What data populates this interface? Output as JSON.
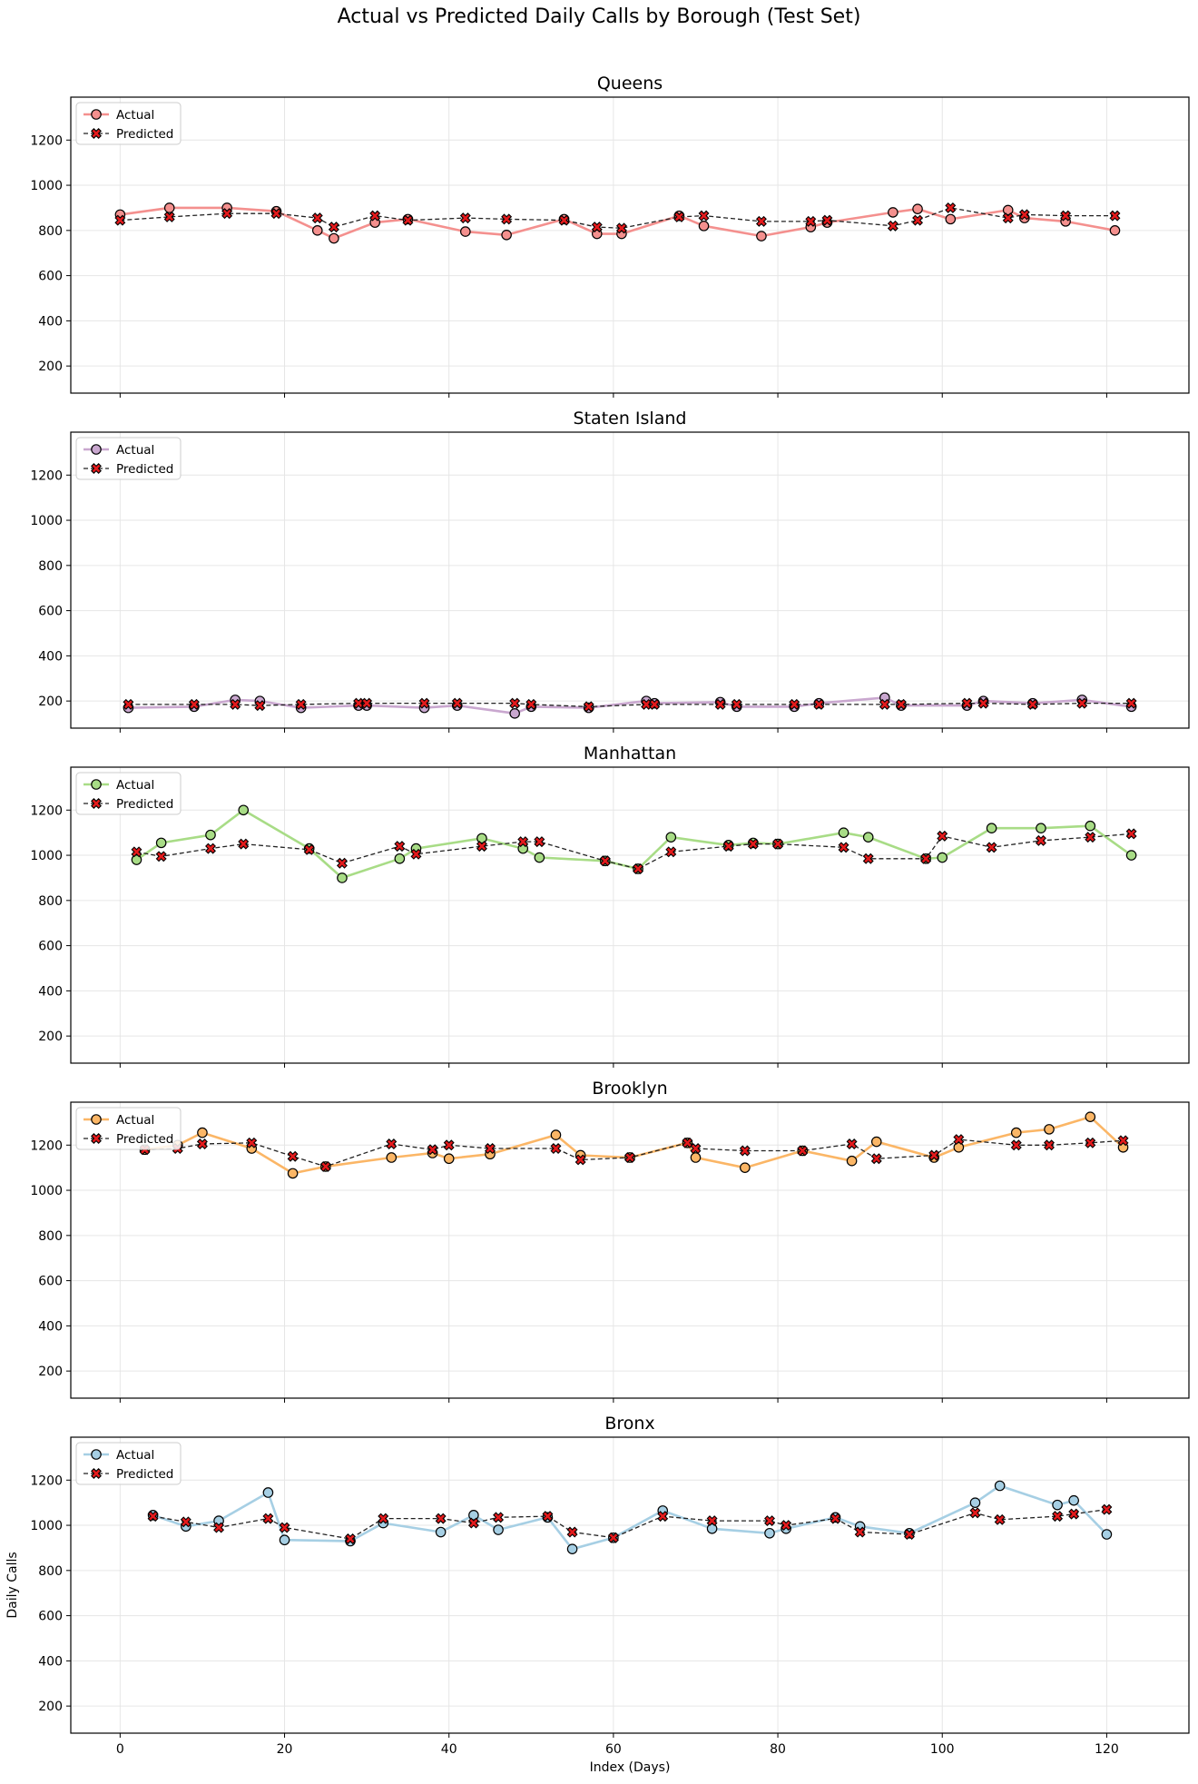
{
  "figure_title": "Actual vs Predicted Daily Calls by Borough (Test Set)",
  "colors": {
    "predicted_marker": "#e41a1c",
    "predicted_line": "#222222",
    "grid": "#e6e6e6"
  },
  "chart_data": [
    {
      "type": "line",
      "title": "Queens",
      "xlabel": "",
      "ylabel": "",
      "xlim": [
        -6,
        130
      ],
      "ylim": [
        80,
        1390
      ],
      "x_ticks": [
        0,
        20,
        40,
        60,
        80,
        100,
        120
      ],
      "y_ticks": [
        200,
        400,
        600,
        800,
        1000,
        1200
      ],
      "show_x_tick_labels": false,
      "grid": true,
      "legend": "top-left",
      "color": "#f4908e",
      "series": [
        {
          "name": "Actual",
          "x": [
            0,
            6,
            13,
            19,
            24,
            26,
            31,
            35,
            42,
            47,
            54,
            58,
            61,
            68,
            71,
            78,
            84,
            86,
            94,
            97,
            101,
            108,
            110,
            115,
            121
          ],
          "values": [
            870,
            900,
            900,
            885,
            800,
            765,
            835,
            850,
            795,
            780,
            850,
            785,
            785,
            865,
            820,
            775,
            815,
            835,
            880,
            895,
            850,
            890,
            855,
            840,
            800
          ]
        },
        {
          "name": "Predicted",
          "x": [
            0,
            6,
            13,
            19,
            24,
            26,
            31,
            35,
            42,
            47,
            54,
            58,
            61,
            68,
            71,
            78,
            84,
            86,
            94,
            97,
            101,
            108,
            110,
            115,
            121
          ],
          "values": [
            845,
            860,
            875,
            875,
            855,
            815,
            865,
            845,
            855,
            850,
            845,
            815,
            810,
            860,
            865,
            840,
            840,
            845,
            820,
            845,
            900,
            855,
            870,
            865,
            865
          ]
        }
      ]
    },
    {
      "type": "line",
      "title": "Staten Island",
      "xlabel": "",
      "ylabel": "",
      "xlim": [
        -6,
        130
      ],
      "ylim": [
        80,
        1390
      ],
      "x_ticks": [
        0,
        20,
        40,
        60,
        80,
        100,
        120
      ],
      "y_ticks": [
        200,
        400,
        600,
        800,
        1000,
        1200
      ],
      "show_x_tick_labels": false,
      "grid": true,
      "legend": "top-left",
      "color": "#c9a7cf",
      "series": [
        {
          "name": "Actual",
          "x": [
            1,
            9,
            14,
            17,
            22,
            29,
            30,
            37,
            41,
            48,
            50,
            57,
            64,
            65,
            73,
            75,
            82,
            85,
            93,
            95,
            103,
            105,
            111,
            117,
            123
          ],
          "values": [
            170,
            175,
            205,
            200,
            170,
            180,
            180,
            170,
            180,
            145,
            175,
            170,
            200,
            190,
            195,
            175,
            175,
            190,
            215,
            180,
            180,
            200,
            190,
            205,
            175
          ]
        },
        {
          "name": "Predicted",
          "x": [
            1,
            9,
            14,
            17,
            22,
            29,
            30,
            37,
            41,
            48,
            50,
            57,
            64,
            65,
            73,
            75,
            82,
            85,
            93,
            95,
            103,
            105,
            111,
            117,
            123
          ],
          "values": [
            185,
            185,
            185,
            180,
            185,
            190,
            190,
            190,
            190,
            190,
            185,
            175,
            185,
            185,
            185,
            185,
            185,
            185,
            185,
            185,
            190,
            190,
            185,
            190,
            190
          ]
        }
      ]
    },
    {
      "type": "line",
      "title": "Manhattan",
      "xlabel": "",
      "ylabel": "",
      "xlim": [
        -6,
        130
      ],
      "ylim": [
        80,
        1390
      ],
      "x_ticks": [
        0,
        20,
        40,
        60,
        80,
        100,
        120
      ],
      "y_ticks": [
        200,
        400,
        600,
        800,
        1000,
        1200
      ],
      "show_x_tick_labels": false,
      "grid": true,
      "legend": "top-left",
      "color": "#a8dc86",
      "series": [
        {
          "name": "Actual",
          "x": [
            2,
            5,
            11,
            15,
            23,
            27,
            34,
            36,
            44,
            49,
            51,
            59,
            63,
            67,
            74,
            77,
            80,
            88,
            91,
            98,
            100,
            106,
            112,
            118,
            123
          ],
          "values": [
            980,
            1055,
            1090,
            1200,
            1030,
            900,
            985,
            1030,
            1075,
            1030,
            990,
            975,
            940,
            1080,
            1045,
            1055,
            1050,
            1100,
            1080,
            985,
            990,
            1120,
            1120,
            1130,
            1000
          ]
        },
        {
          "name": "Predicted",
          "x": [
            2,
            5,
            11,
            15,
            23,
            27,
            34,
            36,
            44,
            49,
            51,
            59,
            63,
            67,
            74,
            77,
            80,
            88,
            91,
            98,
            100,
            106,
            112,
            118,
            123
          ],
          "values": [
            1015,
            995,
            1030,
            1050,
            1025,
            965,
            1040,
            1005,
            1040,
            1060,
            1060,
            975,
            940,
            1015,
            1040,
            1050,
            1050,
            1035,
            985,
            985,
            1085,
            1035,
            1065,
            1080,
            1095
          ]
        }
      ]
    },
    {
      "type": "line",
      "title": "Brooklyn",
      "xlabel": "",
      "ylabel": "",
      "xlim": [
        -6,
        130
      ],
      "ylim": [
        80,
        1390
      ],
      "x_ticks": [
        0,
        20,
        40,
        60,
        80,
        100,
        120
      ],
      "y_ticks": [
        200,
        400,
        600,
        800,
        1000,
        1200
      ],
      "show_x_tick_labels": false,
      "grid": true,
      "legend": "top-left",
      "color": "#fbb666",
      "series": [
        {
          "name": "Actual",
          "x": [
            3,
            7,
            10,
            16,
            21,
            25,
            33,
            38,
            40,
            45,
            53,
            56,
            62,
            69,
            70,
            76,
            83,
            89,
            92,
            99,
            102,
            109,
            113,
            118,
            122
          ],
          "values": [
            1180,
            1200,
            1255,
            1185,
            1075,
            1105,
            1145,
            1165,
            1140,
            1160,
            1245,
            1155,
            1145,
            1210,
            1145,
            1100,
            1175,
            1130,
            1215,
            1145,
            1190,
            1255,
            1270,
            1325,
            1190
          ]
        },
        {
          "name": "Predicted",
          "x": [
            3,
            7,
            10,
            16,
            21,
            25,
            33,
            38,
            40,
            45,
            53,
            56,
            62,
            69,
            70,
            76,
            83,
            89,
            92,
            99,
            102,
            109,
            113,
            118,
            122
          ],
          "values": [
            1180,
            1185,
            1205,
            1210,
            1150,
            1105,
            1205,
            1180,
            1200,
            1185,
            1185,
            1135,
            1145,
            1210,
            1185,
            1175,
            1175,
            1205,
            1140,
            1155,
            1225,
            1200,
            1200,
            1210,
            1220
          ]
        }
      ]
    },
    {
      "type": "line",
      "title": "Bronx",
      "xlabel": "Index (Days)",
      "ylabel": "Daily Calls",
      "xlim": [
        -6,
        130
      ],
      "ylim": [
        80,
        1390
      ],
      "x_ticks": [
        0,
        20,
        40,
        60,
        80,
        100,
        120
      ],
      "y_ticks": [
        200,
        400,
        600,
        800,
        1000,
        1200
      ],
      "show_x_tick_labels": true,
      "grid": true,
      "legend": "top-left",
      "color": "#a6cfe4",
      "series": [
        {
          "name": "Actual",
          "x": [
            4,
            8,
            12,
            18,
            20,
            28,
            32,
            39,
            43,
            46,
            52,
            55,
            60,
            66,
            72,
            79,
            81,
            87,
            90,
            96,
            104,
            107,
            114,
            116,
            120
          ],
          "values": [
            1045,
            995,
            1020,
            1145,
            935,
            930,
            1010,
            970,
            1045,
            980,
            1035,
            895,
            945,
            1065,
            985,
            965,
            985,
            1035,
            995,
            965,
            1100,
            1175,
            1090,
            1110,
            960
          ]
        },
        {
          "name": "Predicted",
          "x": [
            4,
            8,
            12,
            18,
            20,
            28,
            32,
            39,
            43,
            46,
            52,
            55,
            60,
            66,
            72,
            79,
            81,
            87,
            90,
            96,
            104,
            107,
            114,
            116,
            120
          ],
          "values": [
            1040,
            1015,
            990,
            1030,
            990,
            940,
            1030,
            1030,
            1010,
            1035,
            1040,
            970,
            945,
            1040,
            1020,
            1020,
            1000,
            1030,
            970,
            960,
            1055,
            1025,
            1040,
            1050,
            1070
          ]
        }
      ]
    }
  ]
}
